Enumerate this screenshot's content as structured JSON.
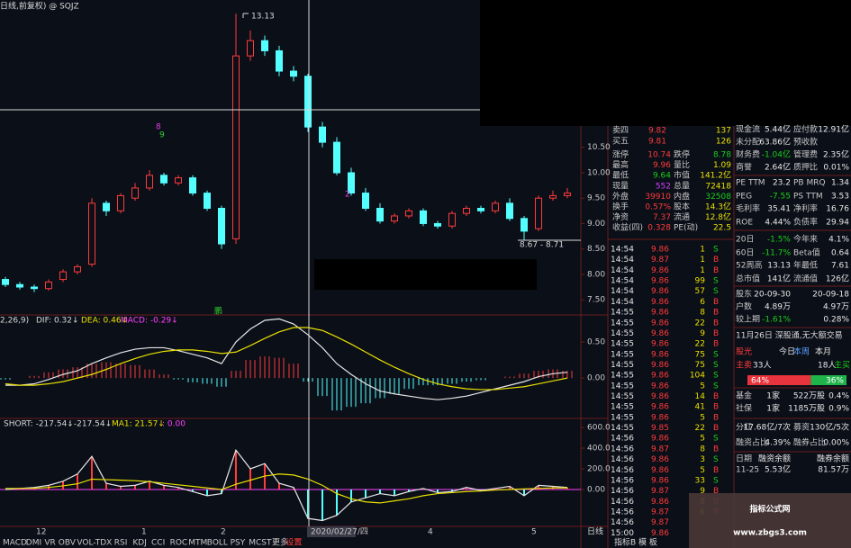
{
  "title": "日线,前复权) @ SQJZ",
  "kline": {
    "open": [
      7.9,
      7.8,
      7.75,
      7.72,
      7.9,
      8.05,
      8.2,
      9.4,
      9.25,
      9.5,
      9.7,
      9.95,
      9.8,
      9.9,
      9.6,
      9.3,
      8.7,
      12.3,
      12.6,
      12.4,
      12.0,
      11.9,
      10.9,
      10.6,
      10.0,
      9.6,
      9.3,
      9.05,
      9.15,
      9.25,
      9.0,
      8.95,
      9.2,
      9.3,
      9.25,
      9.4,
      9.1,
      8.9,
      9.5,
      9.55
    ],
    "close": [
      7.8,
      7.75,
      7.72,
      7.85,
      8.05,
      8.15,
      9.4,
      9.25,
      9.55,
      9.7,
      9.95,
      9.8,
      9.9,
      9.6,
      9.3,
      8.6,
      12.3,
      12.6,
      12.4,
      12.0,
      11.9,
      10.9,
      10.6,
      10.0,
      9.6,
      9.3,
      9.05,
      9.15,
      9.25,
      9.0,
      8.95,
      9.2,
      9.3,
      9.25,
      9.4,
      9.1,
      8.85,
      9.5,
      9.55,
      9.6
    ],
    "high": [
      7.95,
      7.85,
      7.8,
      7.9,
      8.1,
      8.2,
      9.5,
      9.45,
      9.6,
      9.8,
      10.05,
      10.0,
      9.95,
      9.95,
      9.65,
      9.35,
      13.13,
      12.8,
      12.7,
      12.5,
      12.1,
      11.95,
      11.0,
      10.7,
      10.1,
      9.7,
      9.4,
      9.2,
      9.3,
      9.3,
      9.05,
      9.25,
      9.35,
      9.35,
      9.45,
      9.5,
      9.15,
      9.55,
      9.65,
      9.7
    ],
    "low": [
      7.75,
      7.7,
      7.65,
      7.68,
      7.85,
      8.0,
      8.15,
      9.15,
      9.2,
      9.45,
      9.65,
      9.75,
      9.75,
      9.55,
      9.25,
      8.5,
      8.6,
      12.2,
      12.3,
      11.9,
      11.8,
      10.8,
      10.5,
      9.95,
      9.55,
      9.25,
      9.0,
      9.0,
      9.1,
      8.95,
      8.9,
      8.9,
      9.15,
      9.2,
      9.2,
      9.05,
      8.67,
      8.85,
      9.45,
      9.5
    ],
    "ylim": [
      7.29,
      13.4
    ],
    "yticks": [
      {
        "value": 10.5,
        "label": "10.50"
      },
      {
        "value": 10,
        "label": "10.00"
      },
      {
        "value": 9.5,
        "label": "9.50"
      },
      {
        "value": 9,
        "label": "9.00"
      },
      {
        "value": 8.5,
        "label": "8.50"
      },
      {
        "value": 8,
        "label": "8.00"
      },
      {
        "value": 7.5,
        "label": "7.50"
      }
    ],
    "peak_label": "13.13",
    "low_label": "8.67 - 8.71",
    "markers": [
      "8",
      "9",
      "2",
      "鹏"
    ]
  },
  "macd": {
    "header": "2,26,9)",
    "dif_label": "DIF: 0.32↓",
    "dea_label": "DEA: 0.46↓",
    "macd_label": "MACD: -0.29↓",
    "hist": [
      -0.02,
      0.0,
      0.03,
      0.08,
      0.12,
      0.15,
      0.2,
      0.22,
      0.2,
      0.18,
      0.12,
      0.05,
      -0.02,
      -0.06,
      -0.08,
      -0.12,
      0.1,
      0.25,
      0.3,
      0.28,
      0.2,
      -0.05,
      -0.25,
      -0.45,
      -0.4,
      -0.35,
      -0.28,
      -0.22,
      -0.15,
      -0.1,
      -0.1,
      -0.08,
      -0.05,
      -0.03,
      0.0,
      0.02,
      0.06,
      0.1,
      0.12,
      0.1
    ],
    "dif": [
      -0.1,
      -0.1,
      -0.08,
      -0.02,
      0.05,
      0.1,
      0.2,
      0.28,
      0.35,
      0.4,
      0.42,
      0.42,
      0.38,
      0.33,
      0.28,
      0.2,
      0.5,
      0.68,
      0.8,
      0.82,
      0.75,
      0.6,
      0.42,
      0.2,
      0.05,
      -0.08,
      -0.18,
      -0.22,
      -0.25,
      -0.28,
      -0.3,
      -0.28,
      -0.25,
      -0.2,
      -0.15,
      -0.1,
      -0.05,
      0.02,
      0.06,
      0.08
    ],
    "dea": [
      -0.08,
      -0.1,
      -0.1,
      -0.08,
      -0.05,
      0.0,
      0.05,
      0.12,
      0.2,
      0.27,
      0.33,
      0.37,
      0.39,
      0.39,
      0.37,
      0.34,
      0.36,
      0.45,
      0.55,
      0.64,
      0.7,
      0.7,
      0.66,
      0.57,
      0.47,
      0.36,
      0.25,
      0.15,
      0.06,
      -0.02,
      -0.08,
      -0.12,
      -0.15,
      -0.16,
      -0.16,
      -0.14,
      -0.12,
      -0.08,
      -0.04,
      0.0
    ],
    "ylim": [
      -0.56,
      0.85
    ],
    "yticks": [
      {
        "value": 0.5,
        "label": "0.50"
      },
      {
        "value": 0,
        "label": "0.00"
      }
    ]
  },
  "vol_ind": {
    "labels": [
      "SHORT: -217.54↓",
      ": -217.54↓",
      "MA1: 21.57↓",
      ": 0.00"
    ],
    "short": [
      0,
      10,
      20,
      40,
      80,
      150,
      320,
      60,
      30,
      40,
      80,
      40,
      20,
      -20,
      -60,
      -40,
      380,
      200,
      250,
      60,
      20,
      -280,
      -300,
      -250,
      -120,
      -80,
      -40,
      -60,
      -20,
      10,
      -30,
      -20,
      20,
      -10,
      10,
      30,
      -60,
      40,
      30,
      20
    ],
    "ma1": [
      10,
      10,
      12,
      20,
      35,
      55,
      100,
      95,
      90,
      85,
      75,
      60,
      45,
      30,
      15,
      0,
      50,
      90,
      130,
      150,
      140,
      100,
      40,
      -40,
      -90,
      -120,
      -130,
      -110,
      -90,
      -60,
      -40,
      -30,
      -20,
      -15,
      -5,
      0,
      5,
      10,
      15,
      15
    ],
    "ylim": [
      -357,
      661
    ],
    "yticks": [
      {
        "value": 600,
        "label": "600.0"
      },
      {
        "value": 400,
        "label": "400.0"
      },
      {
        "value": 200,
        "label": "200.0"
      },
      {
        "value": 0,
        "label": "0.00"
      }
    ]
  },
  "x_axis": {
    "labels": [
      "12",
      "1",
      "2",
      "2020/02/27/四",
      "4",
      "5"
    ],
    "period": "日线"
  },
  "tabs": [
    "MACD",
    "DMI",
    "VR",
    "OBV",
    "VOL-TDX",
    "RSI",
    "KDJ",
    "CCI",
    "ROC",
    "MTM",
    "BOLL",
    "PSY",
    "MCST",
    "更多",
    "设置"
  ],
  "tab_extra": "指标B 模 板",
  "quote": {
    "levels": [
      [
        "卖四",
        "9.82",
        "137"
      ],
      [
        "买五",
        "9.81",
        "126"
      ]
    ],
    "stats": [
      [
        "涨停",
        "10.74",
        "跌停",
        "8.78"
      ],
      [
        "最高",
        "9.96",
        "量比",
        "1.09"
      ],
      [
        "最低",
        "9.64",
        "市值",
        "141.2亿"
      ],
      [
        "现量",
        "552",
        "总量",
        "72418"
      ],
      [
        "外盘",
        "39910",
        "内盘",
        "32508"
      ],
      [
        "换手",
        "0.57%",
        "股本",
        "14.3亿"
      ],
      [
        "净资",
        "7.37",
        "流通",
        "12.8亿"
      ],
      [
        "收益(四)",
        "0.328",
        "PE(动)",
        "22.5"
      ]
    ]
  },
  "ticks": [
    [
      "14:54",
      "9.86",
      "1",
      "S"
    ],
    [
      "14:54",
      "9.87",
      "1",
      "B"
    ],
    [
      "14:54",
      "9.86",
      "1",
      "B"
    ],
    [
      "14:54",
      "9.86",
      "99",
      "S"
    ],
    [
      "14:54",
      "9.86",
      "57",
      "S"
    ],
    [
      "14:54",
      "9.86",
      "6",
      "B"
    ],
    [
      "14:55",
      "9.86",
      "8",
      "B"
    ],
    [
      "14:55",
      "9.86",
      "22",
      "B"
    ],
    [
      "14:55",
      "9.86",
      "9",
      "B"
    ],
    [
      "14:55",
      "9.86",
      "22",
      "B"
    ],
    [
      "14:55",
      "9.86",
      "75",
      "S"
    ],
    [
      "14:55",
      "9.86",
      "75",
      "S"
    ],
    [
      "14:55",
      "9.86",
      "104",
      "S"
    ],
    [
      "14:55",
      "9.86",
      "5",
      "S"
    ],
    [
      "14:55",
      "9.86",
      "14",
      "B"
    ],
    [
      "14:55",
      "9.86",
      "41",
      "B"
    ],
    [
      "14:55",
      "9.86",
      "5",
      "B"
    ],
    [
      "14:55",
      "9.85",
      "22",
      "B"
    ],
    [
      "14:56",
      "9.86",
      "5",
      "S"
    ],
    [
      "14:56",
      "9.87",
      "8",
      "B"
    ],
    [
      "14:56",
      "9.86",
      "3",
      "S"
    ],
    [
      "14:56",
      "9.86",
      "5",
      "B"
    ],
    [
      "14:56",
      "9.86",
      "33",
      "S"
    ],
    [
      "14:56",
      "9.87",
      "9",
      "B"
    ],
    [
      "14:56",
      "9.86",
      "8",
      "B"
    ],
    [
      "14:56",
      "9.87",
      "6",
      "B"
    ],
    [
      "14:56",
      "9.87"
    ],
    [
      "15:00",
      "9.86"
    ]
  ],
  "fundamentals": [
    [
      "现金流",
      "5.44亿",
      "应付款",
      "12.91亿"
    ],
    [
      "未分配",
      "63.86亿",
      "预收款"
    ],
    [
      "财务费",
      "-1.04亿",
      "管理费",
      "2.35亿"
    ],
    [
      "商誉",
      "2.64亿",
      "质押比",
      "0.01%"
    ],
    [
      "PE TTM",
      "23.2",
      "PB MRQ",
      "1.34"
    ],
    [
      "PEG",
      "-7.55",
      "PS TTM",
      "3.53"
    ],
    [
      "毛利率",
      "35.41",
      "净利率",
      "16.76"
    ],
    [
      "ROE",
      "4.44%",
      "负债率",
      "29.94"
    ],
    [
      "20日",
      "-1.5%",
      "今年来",
      "4.1%"
    ],
    [
      "60日",
      "-11.7%",
      "Beta值",
      "0.64"
    ],
    [
      "52周高",
      "13.13",
      "年最低",
      "7.61"
    ],
    [
      "总市值",
      "141亿",
      "流通值",
      "126亿"
    ],
    [
      "股东",
      "20-09-30",
      "",
      "20-09-18"
    ],
    [
      "户数",
      "4.89万",
      "",
      "4.97万"
    ],
    [
      "较上期",
      "-1.61%",
      "",
      "0.28%"
    ]
  ],
  "news": "11月26日 深股通,无大额交易",
  "flow": {
    "tabs": [
      "股光",
      "今日",
      "本周",
      "本月"
    ],
    "sell_label": "主卖",
    "sell_count": "33人",
    "buy_count": "18人",
    "buy_label": "主买",
    "values": [
      64,
      36
    ],
    "value_labels": [
      "64%",
      "36%"
    ]
  },
  "holders": [
    [
      "基金",
      "1家",
      "522万股",
      "0.4%"
    ],
    [
      "社保",
      "1家",
      "1185万股",
      "0.9%"
    ],
    [
      "分红",
      "17.68亿/7次",
      "募资",
      "130亿/5次"
    ],
    [
      "融资占比",
      "4.39%",
      "融券占比",
      "0.00%"
    ],
    [
      "日期",
      "融资余额",
      "",
      "融券余额"
    ],
    [
      "11-25",
      "5.53亿",
      "",
      "81.57万"
    ]
  ],
  "watermark": {
    "title": "指标公式网",
    "url": "www.zbgs3.com"
  }
}
